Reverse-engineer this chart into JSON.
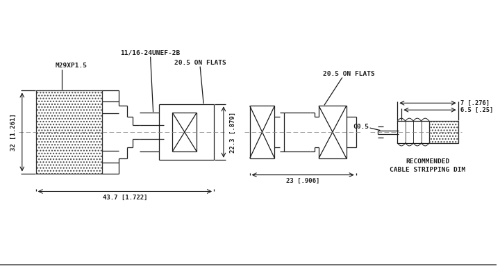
{
  "bg_color": "#ffffff",
  "line_color": "#1a1a1a",
  "fig_width": 7.2,
  "fig_height": 3.9,
  "annotations": {
    "M29XP1_5": "M29XP1.5",
    "thread_label": "11/16-24UNEF-2B",
    "on_flats_left": "20.5 ON FLATS",
    "on_flats_right": "20.5 ON FLATS",
    "dim_32": "32 [1.261]",
    "dim_22_3": "22.3 [.879]",
    "dim_43_7": "43.7 [1.722]",
    "dim_23": "23 [.906]",
    "dim_7": "7 [.276]",
    "dim_6_5": "6.5 [.25]",
    "label_C0_5": "C0.5",
    "rec_text1": "RECOMMENDED",
    "rec_text2": "CABLE STRIPPING DIM"
  }
}
